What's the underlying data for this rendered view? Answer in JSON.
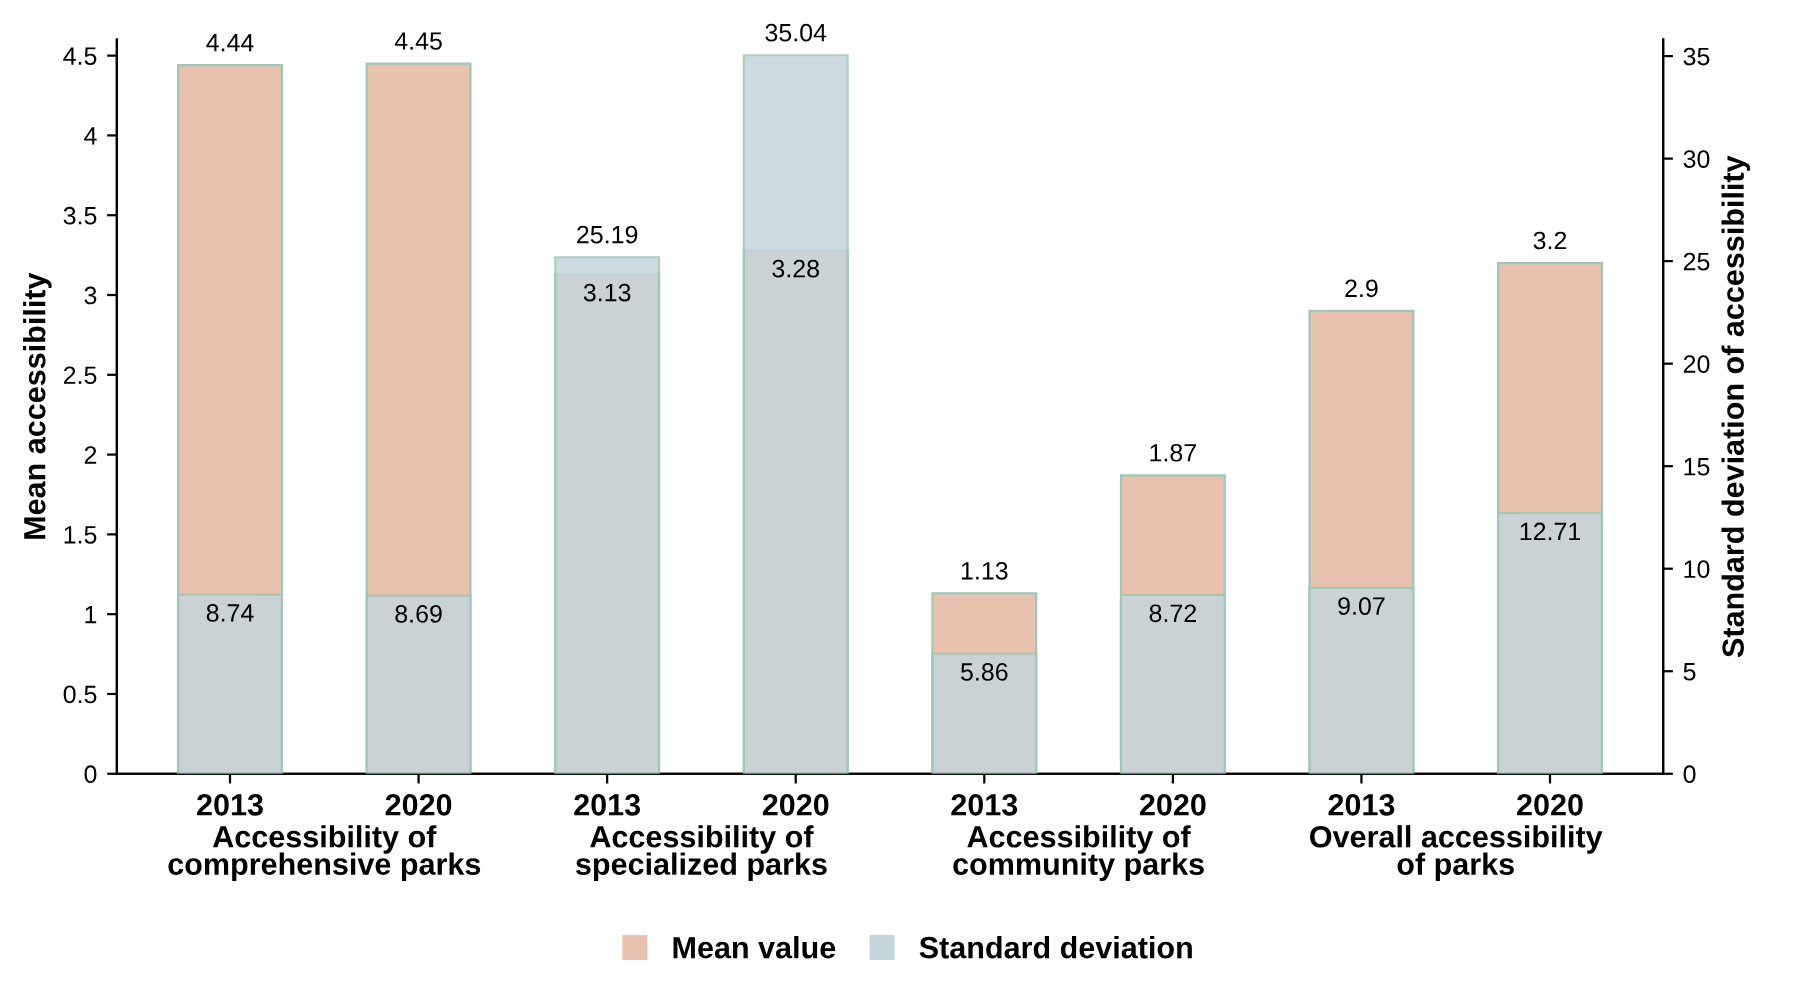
{
  "chart_data": {
    "type": "bar",
    "ylabel": "Mean accessibility",
    "y2label": "Standard deviation of accessibility",
    "categories": [
      "2013",
      "2020",
      "2013",
      "2020",
      "2013",
      "2020",
      "2013",
      "2020"
    ],
    "annotations": [
      "Accessibility of\ncomprehensive parks",
      "Accessibility of\nspecialized parks",
      "Accessibility of\ncommunity parks",
      "Overall accessibility\nof parks"
    ],
    "series": [
      {
        "name": "Mean value",
        "color": "#e8c2ae",
        "values": [
          4.44,
          4.45,
          3.13,
          3.28,
          1.13,
          1.87,
          2.9,
          3.2
        ]
      },
      {
        "name": "Standard deviation",
        "color": "#c5d5dc",
        "axis": "y2",
        "values": [
          8.74,
          8.69,
          25.19,
          35.04,
          5.86,
          8.72,
          9.07,
          12.71
        ]
      }
    ],
    "data_labels": true,
    "ylim": [
      0,
      4.6
    ],
    "yticks": [
      0,
      0.5,
      1,
      1.5,
      2,
      2.5,
      3,
      3.5,
      4,
      4.5
    ],
    "y2lim": [
      0,
      35.8
    ],
    "y2ticks": [
      0,
      5,
      10,
      15,
      20,
      25,
      30,
      35
    ],
    "legend": "bottom",
    "grid": false
  }
}
